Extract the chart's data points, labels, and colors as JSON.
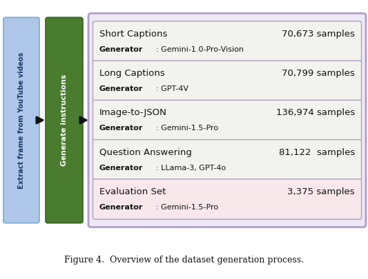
{
  "title": "Figure 4.  Overview of the dataset generation process.",
  "left_box_text": "Extract frame from YouTube videos",
  "left_box_color": "#aec6e8",
  "left_box_edge_color": "#7aaad0",
  "left_box_text_color": "#1a3a6b",
  "middle_box_text": "Generate instructions",
  "middle_box_color": "#4a7c2f",
  "middle_box_edge_color": "#3a6020",
  "middle_box_text_color": "#ffffff",
  "outer_box_edge_color": "#b09ccc",
  "outer_box_fill": "#ede8f5",
  "row_edge_color": "#b0a0c0",
  "rows": [
    {
      "title": "Short Captions",
      "samples": "70,673 samples",
      "generator_value": "Gemini-1.0-Pro-Vision",
      "bg_color": "#f2f2ee"
    },
    {
      "title": "Long Captions",
      "samples": "70,799 samples",
      "generator_value": "GPT-4V",
      "bg_color": "#f2f2ee"
    },
    {
      "title": "Image-to-JSON",
      "samples": "136,974 samples",
      "generator_value": "Gemini-1.5-Pro",
      "bg_color": "#f2f2ee"
    },
    {
      "title": "Question Answering",
      "samples": "81,122  samples",
      "generator_value": "LLama-3, GPT-4o",
      "bg_color": "#f2f2ee"
    },
    {
      "title": "Evaluation Set",
      "samples": "3,375 samples",
      "generator_value": "Gemini-1.5-Pro",
      "bg_color": "#f8e8ec"
    }
  ],
  "arrow_color": "#111111",
  "background_color": "#ffffff",
  "fig_width": 5.33,
  "fig_height": 4.05,
  "dpi": 100
}
